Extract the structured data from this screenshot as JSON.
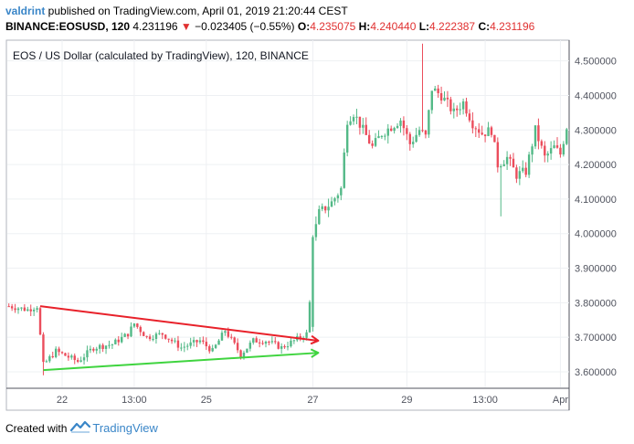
{
  "header": {
    "author": "valdrint",
    "published_text": " published on TradingView.com, April 01, 2019 21:20:44 CEST",
    "symbol": "BINANCE:EOSUSD, 120",
    "last": "4.231196",
    "change_arrow": "▼",
    "change": "−0.023405 (−0.55%)",
    "o_label": "O:",
    "o_value": "4.235075",
    "h_label": "H:",
    "h_value": "4.240440",
    "l_label": "L:",
    "l_value": "4.222387",
    "c_label": "C:",
    "c_value": "4.231196"
  },
  "footer": {
    "created_with": "Created with",
    "brand": "TradingView"
  },
  "colors": {
    "up": "#53b987",
    "down": "#eb4d5c",
    "trend_upper": "#e8212a",
    "trend_lower": "#3fd43f",
    "brand": "#3a86c8"
  },
  "chart_data": {
    "type": "candlestick",
    "title": "EOS / US Dollar (calculated by TradingView), 120, BINANCE",
    "ylim": [
      3.555,
      4.56
    ],
    "y_ticks": [
      "4.500000",
      "4.400000",
      "4.300000",
      "4.200000",
      "4.100000",
      "4.000000",
      "3.900000",
      "3.800000",
      "3.700000",
      "3.600000"
    ],
    "x_ticks": [
      "22",
      "13:00",
      "25",
      "27",
      "29",
      "13:00",
      "Apr"
    ],
    "grid": true,
    "n_bars": 179,
    "trendlines": [
      {
        "name": "upper",
        "from": {
          "bar": 10,
          "price": 3.79
        },
        "to": {
          "bar": 97,
          "price": 3.69
        }
      },
      {
        "name": "lower",
        "from": {
          "bar": 11,
          "price": 3.605
        },
        "to": {
          "bar": 97,
          "price": 3.655
        }
      }
    ],
    "anchors": [
      [
        0,
        3.79
      ],
      [
        6,
        3.78
      ],
      [
        9,
        3.79
      ],
      [
        11,
        3.62
      ],
      [
        15,
        3.66
      ],
      [
        22,
        3.63
      ],
      [
        27,
        3.67
      ],
      [
        33,
        3.68
      ],
      [
        38,
        3.71
      ],
      [
        40,
        3.74
      ],
      [
        44,
        3.7
      ],
      [
        49,
        3.71
      ],
      [
        55,
        3.67
      ],
      [
        61,
        3.69
      ],
      [
        65,
        3.66
      ],
      [
        69,
        3.72
      ],
      [
        74,
        3.65
      ],
      [
        78,
        3.69
      ],
      [
        82,
        3.69
      ],
      [
        87,
        3.67
      ],
      [
        91,
        3.69
      ],
      [
        95,
        3.71
      ],
      [
        96,
        3.8
      ],
      [
        97,
        3.98
      ],
      [
        99,
        4.06
      ],
      [
        103,
        4.09
      ],
      [
        106,
        4.13
      ],
      [
        108,
        4.33
      ],
      [
        110,
        4.35
      ],
      [
        113,
        4.3
      ],
      [
        116,
        4.25
      ],
      [
        119,
        4.29
      ],
      [
        122,
        4.31
      ],
      [
        125,
        4.33
      ],
      [
        128,
        4.26
      ],
      [
        131,
        4.3
      ],
      [
        133,
        4.28
      ],
      [
        135,
        4.42
      ],
      [
        138,
        4.4
      ],
      [
        142,
        4.35
      ],
      [
        145,
        4.38
      ],
      [
        148,
        4.32
      ],
      [
        151,
        4.29
      ],
      [
        154,
        4.3
      ],
      [
        156,
        4.2
      ],
      [
        159,
        4.22
      ],
      [
        162,
        4.17
      ],
      [
        165,
        4.18
      ],
      [
        168,
        4.3
      ],
      [
        171,
        4.22
      ],
      [
        174,
        4.25
      ],
      [
        176,
        4.23
      ],
      [
        178,
        4.31
      ]
    ]
  }
}
